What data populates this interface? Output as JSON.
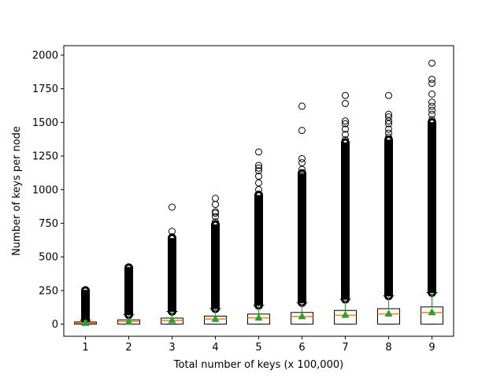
{
  "chart_data": {
    "type": "boxplot",
    "title": "",
    "xlabel": "Total number of keys (x 100,000)",
    "ylabel": "Number of keys per node",
    "categories": [
      "1",
      "2",
      "3",
      "4",
      "5",
      "6",
      "7",
      "8",
      "9"
    ],
    "ylim": [
      -90,
      2070
    ],
    "yticks": [
      0,
      250,
      500,
      750,
      1000,
      1250,
      1500,
      1750,
      2000
    ],
    "grid": false,
    "legend": "none",
    "colors": {
      "box": "#000000",
      "median": "#ff7f0e",
      "whisker": "#2ca02c",
      "mean_marker": "#2ca02c",
      "flier": "#000000"
    },
    "boxes": [
      {
        "q1": 0,
        "median": 9,
        "q3": 16,
        "mean": 10,
        "whisker_low": 0,
        "whisker_high": 30,
        "flier_min": 30,
        "flier_max": 250,
        "outliers": [
          200,
          230,
          250
        ]
      },
      {
        "q1": 0,
        "median": 19,
        "q3": 32,
        "mean": 20,
        "whisker_low": 0,
        "whisker_high": 70,
        "flier_min": 70,
        "flier_max": 420,
        "outliers": [
          380,
          400,
          420
        ]
      },
      {
        "q1": 0,
        "median": 28,
        "q3": 45,
        "mean": 30,
        "whisker_low": 0,
        "whisker_high": 95,
        "flier_min": 95,
        "flier_max": 640,
        "outliers": [
          640,
          650,
          690,
          870
        ]
      },
      {
        "q1": 0,
        "median": 38,
        "q3": 60,
        "mean": 40,
        "whisker_low": 0,
        "whisker_high": 115,
        "flier_min": 115,
        "flier_max": 740,
        "outliers": [
          760,
          800,
          825,
          835,
          890,
          935
        ]
      },
      {
        "q1": 0,
        "median": 47,
        "q3": 75,
        "mean": 50,
        "whisker_low": 0,
        "whisker_high": 140,
        "flier_min": 140,
        "flier_max": 960,
        "outliers": [
          1000,
          1050,
          1100,
          1140,
          1160,
          1180,
          1280
        ]
      },
      {
        "q1": 0,
        "median": 57,
        "q3": 87,
        "mean": 60,
        "whisker_low": 0,
        "whisker_high": 160,
        "flier_min": 160,
        "flier_max": 1120,
        "outliers": [
          1150,
          1200,
          1230,
          1440,
          1620
        ]
      },
      {
        "q1": 0,
        "median": 66,
        "q3": 102,
        "mean": 70,
        "whisker_low": 0,
        "whisker_high": 185,
        "flier_min": 185,
        "flier_max": 1350,
        "outliers": [
          1370,
          1410,
          1450,
          1490,
          1510,
          1640,
          1700
        ]
      },
      {
        "q1": 0,
        "median": 76,
        "q3": 115,
        "mean": 80,
        "whisker_low": 0,
        "whisker_high": 210,
        "flier_min": 210,
        "flier_max": 1370,
        "outliers": [
          1390,
          1420,
          1450,
          1490,
          1510,
          1540,
          1560,
          1700
        ]
      },
      {
        "q1": 0,
        "median": 86,
        "q3": 128,
        "mean": 90,
        "whisker_low": 0,
        "whisker_high": 235,
        "flier_min": 235,
        "flier_max": 1500,
        "outliers": [
          1520,
          1560,
          1590,
          1620,
          1650,
          1710,
          1790,
          1820,
          1940
        ]
      }
    ]
  }
}
